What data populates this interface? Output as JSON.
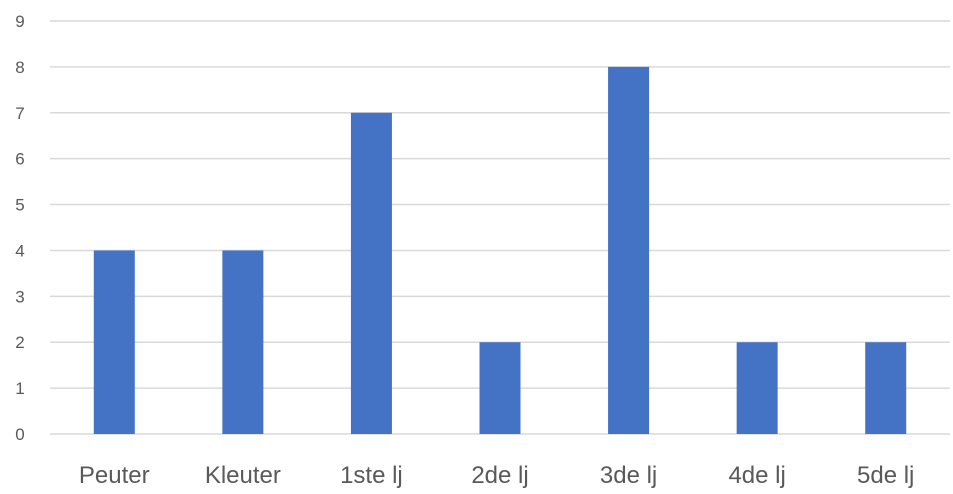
{
  "chart_data": {
    "type": "bar",
    "title": "",
    "xlabel": "",
    "ylabel": "",
    "categories": [
      "Peuter",
      "Kleuter",
      "1ste lj",
      "2de lj",
      "3de lj",
      "4de lj",
      "5de lj"
    ],
    "values": [
      4,
      4,
      7,
      2,
      8,
      2,
      2
    ],
    "ylim": [
      0,
      9
    ],
    "yticks": [
      0,
      1,
      2,
      3,
      4,
      5,
      6,
      7,
      8,
      9
    ],
    "grid": true,
    "legend": "none",
    "bar_color": "#4472c4",
    "grid_color": "#d9d9d9",
    "label_color": "#595959"
  }
}
